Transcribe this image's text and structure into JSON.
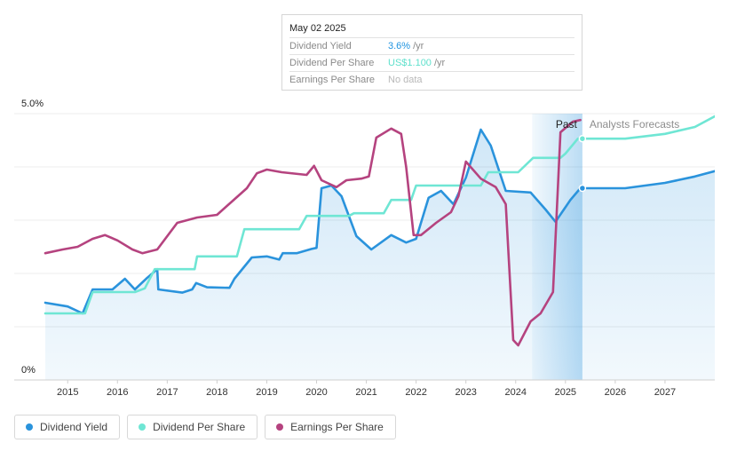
{
  "tooltip": {
    "date": "May 02 2025",
    "rows": [
      {
        "label": "Dividend Yield",
        "value": "3.6%",
        "unit": "/yr",
        "color": "#1f93e0"
      },
      {
        "label": "Dividend Per Share",
        "value": "US$1.100",
        "unit": "/yr",
        "color": "#5fe0cc"
      },
      {
        "label": "Earnings Per Share",
        "value": "No data",
        "unit": "",
        "color": "#b8b8b8"
      }
    ]
  },
  "regions": {
    "past_label": "Past",
    "forecast_label": "Analysts Forecasts"
  },
  "legend": [
    {
      "label": "Dividend Yield",
      "color": "#2a93dc"
    },
    {
      "label": "Dividend Per Share",
      "color": "#6fe6d4"
    },
    {
      "label": "Earnings Per Share",
      "color": "#b5437f"
    }
  ],
  "chart_data": {
    "type": "line",
    "title": "",
    "xlabel": "",
    "ylabel": "",
    "x_ticks": [
      "2015",
      "2016",
      "2017",
      "2018",
      "2019",
      "2020",
      "2021",
      "2022",
      "2023",
      "2024",
      "2025",
      "2026",
      "2027"
    ],
    "y_ticks": [
      "0%",
      "5.0%"
    ],
    "ylim": [
      0,
      5.0
    ],
    "xlim": [
      2014.55,
      2028.0
    ],
    "past_range": [
      2024.33,
      2025.34
    ],
    "grid": "horizontal",
    "legend_position": "bottom-left",
    "series": [
      {
        "name": "Dividend Yield",
        "color": "#2a93dc",
        "filled": true,
        "points": [
          [
            2014.55,
            1.45
          ],
          [
            2015.0,
            1.38
          ],
          [
            2015.3,
            1.25
          ],
          [
            2015.5,
            1.7
          ],
          [
            2015.9,
            1.7
          ],
          [
            2016.15,
            1.9
          ],
          [
            2016.35,
            1.7
          ],
          [
            2016.6,
            1.92
          ],
          [
            2016.8,
            2.08
          ],
          [
            2016.82,
            1.7
          ],
          [
            2017.3,
            1.64
          ],
          [
            2017.5,
            1.7
          ],
          [
            2017.58,
            1.82
          ],
          [
            2017.8,
            1.74
          ],
          [
            2018.25,
            1.73
          ],
          [
            2018.35,
            1.9
          ],
          [
            2018.7,
            2.3
          ],
          [
            2019.0,
            2.32
          ],
          [
            2019.25,
            2.26
          ],
          [
            2019.32,
            2.38
          ],
          [
            2019.6,
            2.38
          ],
          [
            2019.9,
            2.46
          ],
          [
            2020.0,
            2.48
          ],
          [
            2020.1,
            3.6
          ],
          [
            2020.3,
            3.65
          ],
          [
            2020.5,
            3.45
          ],
          [
            2020.8,
            2.7
          ],
          [
            2021.1,
            2.45
          ],
          [
            2021.5,
            2.72
          ],
          [
            2021.8,
            2.58
          ],
          [
            2022.0,
            2.65
          ],
          [
            2022.25,
            3.42
          ],
          [
            2022.5,
            3.55
          ],
          [
            2022.75,
            3.3
          ],
          [
            2023.0,
            3.8
          ],
          [
            2023.3,
            4.7
          ],
          [
            2023.5,
            4.4
          ],
          [
            2023.8,
            3.55
          ],
          [
            2024.3,
            3.52
          ],
          [
            2024.6,
            3.2
          ],
          [
            2024.8,
            2.97
          ],
          [
            2025.1,
            3.38
          ],
          [
            2025.3,
            3.6
          ],
          [
            2025.6,
            3.6
          ],
          [
            2026.2,
            3.6
          ],
          [
            2027.0,
            3.7
          ],
          [
            2027.6,
            3.82
          ],
          [
            2028.0,
            3.92
          ]
        ]
      },
      {
        "name": "Dividend Per Share",
        "color": "#6fe6d4",
        "filled": false,
        "points": [
          [
            2014.55,
            1.25
          ],
          [
            2015.35,
            1.25
          ],
          [
            2015.5,
            1.65
          ],
          [
            2016.35,
            1.65
          ],
          [
            2016.55,
            1.72
          ],
          [
            2016.75,
            2.08
          ],
          [
            2017.55,
            2.08
          ],
          [
            2017.6,
            2.32
          ],
          [
            2018.4,
            2.32
          ],
          [
            2018.55,
            2.83
          ],
          [
            2019.65,
            2.83
          ],
          [
            2019.8,
            3.08
          ],
          [
            2020.65,
            3.08
          ],
          [
            2020.75,
            3.13
          ],
          [
            2021.35,
            3.13
          ],
          [
            2021.5,
            3.38
          ],
          [
            2021.9,
            3.38
          ],
          [
            2022.0,
            3.65
          ],
          [
            2023.3,
            3.65
          ],
          [
            2023.45,
            3.9
          ],
          [
            2024.05,
            3.9
          ],
          [
            2024.35,
            4.17
          ],
          [
            2024.9,
            4.17
          ],
          [
            2025.0,
            4.25
          ],
          [
            2025.25,
            4.53
          ],
          [
            2025.6,
            4.53
          ],
          [
            2026.2,
            4.53
          ],
          [
            2027.0,
            4.62
          ],
          [
            2027.6,
            4.75
          ],
          [
            2028.0,
            4.95
          ]
        ]
      },
      {
        "name": "Earnings Per Share",
        "color": "#b5437f",
        "filled": false,
        "points": [
          [
            2014.55,
            2.38
          ],
          [
            2014.9,
            2.45
          ],
          [
            2015.2,
            2.5
          ],
          [
            2015.5,
            2.65
          ],
          [
            2015.75,
            2.72
          ],
          [
            2016.0,
            2.62
          ],
          [
            2016.3,
            2.45
          ],
          [
            2016.5,
            2.38
          ],
          [
            2016.8,
            2.45
          ],
          [
            2017.2,
            2.95
          ],
          [
            2017.6,
            3.05
          ],
          [
            2018.0,
            3.1
          ],
          [
            2018.3,
            3.35
          ],
          [
            2018.6,
            3.6
          ],
          [
            2018.8,
            3.88
          ],
          [
            2019.0,
            3.95
          ],
          [
            2019.3,
            3.9
          ],
          [
            2019.8,
            3.85
          ],
          [
            2019.95,
            4.02
          ],
          [
            2020.1,
            3.75
          ],
          [
            2020.4,
            3.62
          ],
          [
            2020.6,
            3.75
          ],
          [
            2020.9,
            3.78
          ],
          [
            2021.05,
            3.82
          ],
          [
            2021.2,
            4.55
          ],
          [
            2021.5,
            4.72
          ],
          [
            2021.7,
            4.62
          ],
          [
            2021.8,
            4.0
          ],
          [
            2021.95,
            2.72
          ],
          [
            2022.1,
            2.72
          ],
          [
            2022.4,
            2.95
          ],
          [
            2022.7,
            3.15
          ],
          [
            2022.85,
            3.45
          ],
          [
            2023.0,
            4.1
          ],
          [
            2023.3,
            3.78
          ],
          [
            2023.6,
            3.62
          ],
          [
            2023.8,
            3.3
          ],
          [
            2023.95,
            0.75
          ],
          [
            2024.05,
            0.65
          ],
          [
            2024.3,
            1.1
          ],
          [
            2024.5,
            1.25
          ],
          [
            2024.75,
            1.65
          ],
          [
            2024.9,
            4.65
          ],
          [
            2025.15,
            4.85
          ],
          [
            2025.3,
            4.88
          ]
        ]
      }
    ]
  }
}
